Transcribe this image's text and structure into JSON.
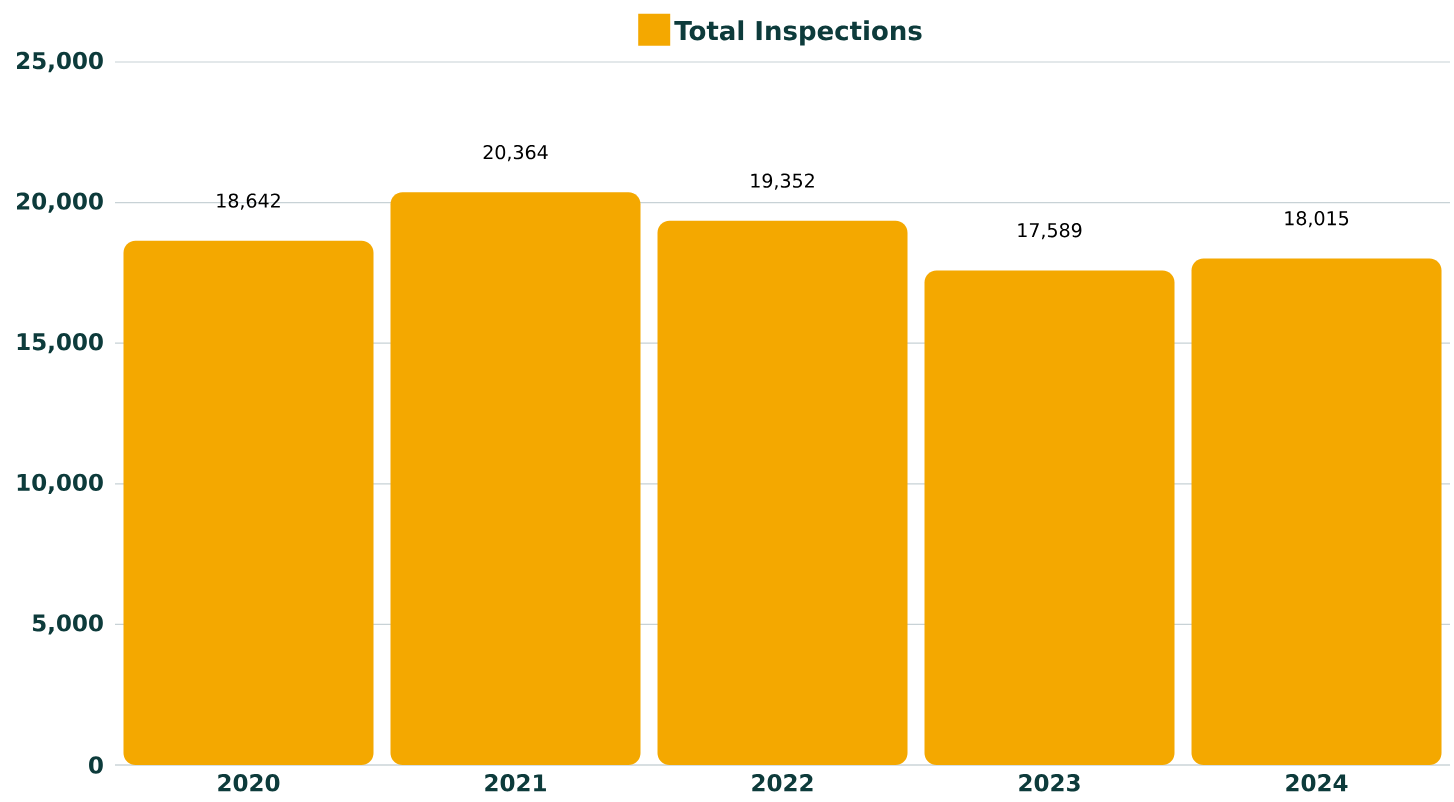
{
  "chart_data": {
    "type": "bar",
    "categories": [
      "2020",
      "2021",
      "2022",
      "2023",
      "2024"
    ],
    "series": [
      {
        "name": "Total Inspections",
        "color": "#f4a800",
        "values": [
          18642,
          20364,
          19352,
          17589,
          18015
        ],
        "value_labels": [
          "18,642",
          "20,364",
          "19,352",
          "17,589",
          "18,015"
        ]
      }
    ],
    "ylim": [
      0,
      25000
    ],
    "yticks": [
      {
        "value": 0,
        "label": "0"
      },
      {
        "value": 5000,
        "label": "5,000"
      },
      {
        "value": 10000,
        "label": "10,000"
      },
      {
        "value": 15000,
        "label": "15,000"
      },
      {
        "value": 20000,
        "label": "20,000"
      },
      {
        "value": 25000,
        "label": "25,000"
      }
    ],
    "grid": "y",
    "legend": "top"
  }
}
